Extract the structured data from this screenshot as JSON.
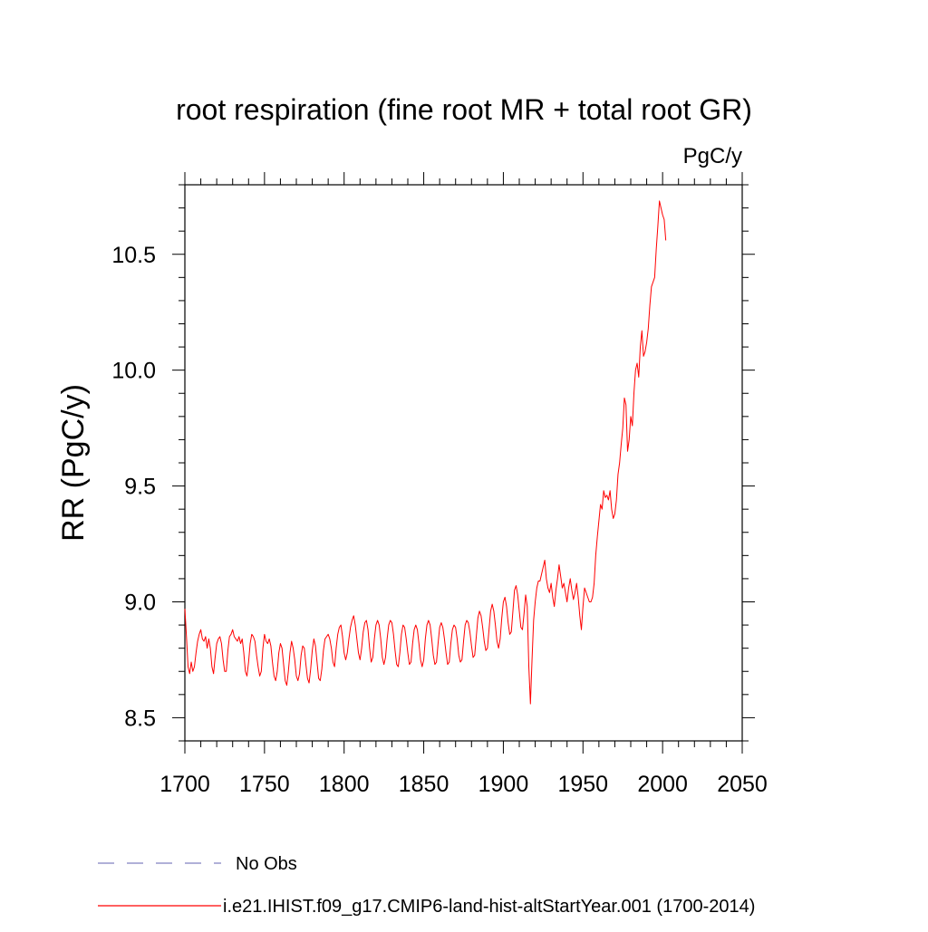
{
  "chart_data": {
    "type": "line",
    "title": "root respiration (fine root MR + total root GR)",
    "units": "PgC/y",
    "ylabel": "RR  (PgC/y)",
    "xlabel": "",
    "xlim": [
      1700,
      2050
    ],
    "ylim": [
      8.4,
      10.8
    ],
    "x_major_ticks": [
      1700,
      1750,
      1800,
      1850,
      1900,
      1950,
      2000,
      2050
    ],
    "y_major_ticks": [
      8.5,
      9.0,
      9.5,
      10.0,
      10.5
    ],
    "x_tick_labels": [
      "1700",
      "1750",
      "1800",
      "1850",
      "1900",
      "1950",
      "2000",
      "2050"
    ],
    "y_tick_labels": [
      "8.5",
      "9.0",
      "9.5",
      "10.0",
      "10.5"
    ],
    "grid": false,
    "legend_position": "bottom",
    "colors": {
      "model": "#ff0000",
      "obs": "#8080c0"
    },
    "legend": [
      {
        "name": "No Obs",
        "style": "dashed",
        "color": "#8080c0"
      },
      {
        "name": "i.e21.IHIST.f09_g17.CMIP6-land-hist-altStartYear.001 (1700-2014)",
        "style": "solid",
        "color": "#ff0000"
      }
    ],
    "series": [
      {
        "name": "i.e21.IHIST.f09_g17.CMIP6-land-hist-altStartYear.001 (1700-2014)",
        "x_start": 1700,
        "x_step": 1,
        "values": [
          8.97,
          8.85,
          8.72,
          8.69,
          8.74,
          8.7,
          8.72,
          8.78,
          8.83,
          8.86,
          8.88,
          8.84,
          8.83,
          8.85,
          8.8,
          8.84,
          8.8,
          8.72,
          8.69,
          8.76,
          8.82,
          8.84,
          8.85,
          8.82,
          8.75,
          8.7,
          8.7,
          8.79,
          8.85,
          8.86,
          8.88,
          8.85,
          8.84,
          8.83,
          8.85,
          8.82,
          8.84,
          8.78,
          8.7,
          8.68,
          8.74,
          8.82,
          8.86,
          8.85,
          8.83,
          8.77,
          8.72,
          8.68,
          8.7,
          8.8,
          8.86,
          8.83,
          8.82,
          8.84,
          8.81,
          8.74,
          8.68,
          8.66,
          8.7,
          8.78,
          8.82,
          8.8,
          8.73,
          8.66,
          8.64,
          8.7,
          8.78,
          8.83,
          8.8,
          8.75,
          8.68,
          8.66,
          8.69,
          8.77,
          8.81,
          8.8,
          8.73,
          8.67,
          8.65,
          8.71,
          8.79,
          8.84,
          8.81,
          8.74,
          8.67,
          8.66,
          8.71,
          8.79,
          8.84,
          8.85,
          8.86,
          8.84,
          8.8,
          8.74,
          8.72,
          8.8,
          8.86,
          8.89,
          8.9,
          8.85,
          8.78,
          8.75,
          8.78,
          8.84,
          8.89,
          8.92,
          8.94,
          8.9,
          8.84,
          8.78,
          8.75,
          8.8,
          8.87,
          8.91,
          8.92,
          8.88,
          8.8,
          8.74,
          8.76,
          8.84,
          8.9,
          8.92,
          8.9,
          8.84,
          8.76,
          8.73,
          8.76,
          8.84,
          8.9,
          8.92,
          8.91,
          8.86,
          8.79,
          8.73,
          8.72,
          8.78,
          8.86,
          8.9,
          8.89,
          8.84,
          8.78,
          8.73,
          8.74,
          8.82,
          8.88,
          8.9,
          8.88,
          8.82,
          8.75,
          8.72,
          8.75,
          8.84,
          8.9,
          8.92,
          8.9,
          8.84,
          8.77,
          8.73,
          8.74,
          8.82,
          8.89,
          8.91,
          8.89,
          8.84,
          8.78,
          8.73,
          8.74,
          8.82,
          8.88,
          8.9,
          8.89,
          8.84,
          8.77,
          8.74,
          8.75,
          8.83,
          8.9,
          8.92,
          8.91,
          8.87,
          8.81,
          8.76,
          8.77,
          8.85,
          8.93,
          8.96,
          8.94,
          8.89,
          8.83,
          8.79,
          8.8,
          8.88,
          8.96,
          8.99,
          8.96,
          8.9,
          8.83,
          8.8,
          8.84,
          8.93,
          9.0,
          9.02,
          8.98,
          8.91,
          8.86,
          8.87,
          8.96,
          9.05,
          9.07,
          9.03,
          8.96,
          8.89,
          8.88,
          8.95,
          9.03,
          8.98,
          8.72,
          8.56,
          8.75,
          8.92,
          9.0,
          9.06,
          9.09,
          9.09,
          9.12,
          9.15,
          9.18,
          9.1,
          9.06,
          9.04,
          9.08,
          9.02,
          8.98,
          9.05,
          9.1,
          9.16,
          9.11,
          9.06,
          9.08,
          9.04,
          9.0,
          9.06,
          9.1,
          9.05,
          9.01,
          9.04,
          9.08,
          9.02,
          8.94,
          8.88,
          8.98,
          9.06,
          9.04,
          9.02,
          9.0,
          9.0,
          9.02,
          9.08,
          9.2,
          9.28,
          9.35,
          9.42,
          9.4,
          9.48,
          9.45,
          9.46,
          9.44,
          9.48,
          9.4,
          9.36,
          9.38,
          9.44,
          9.55,
          9.6,
          9.68,
          9.75,
          9.88,
          9.85,
          9.65,
          9.7,
          9.8,
          9.76,
          9.9,
          10.0,
          10.03,
          9.97,
          10.1,
          10.17,
          10.06,
          10.08,
          10.12,
          10.18,
          10.28,
          10.36,
          10.38,
          10.4,
          10.52,
          10.62,
          10.73,
          10.7,
          10.67,
          10.65,
          10.56
        ]
      }
    ]
  }
}
